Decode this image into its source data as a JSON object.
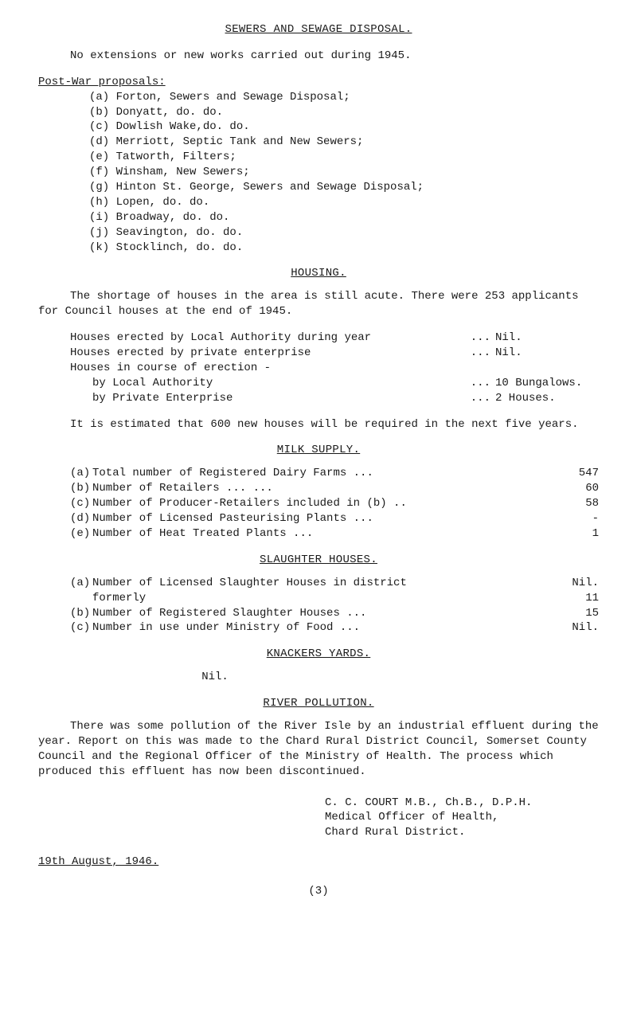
{
  "title": "SEWERS AND SEWAGE DISPOSAL.",
  "intro": "No extensions or new works carried out during 1945.",
  "postwar_head": "Post-War proposals:",
  "postwar": {
    "a": "(a) Forton, Sewers and Sewage Disposal;",
    "b": "(b) Donyatt,      do.          do.",
    "c": "(c) Dowlish Wake,do.          do.",
    "d": "(d) Merriott, Septic Tank and New Sewers;",
    "e": "(e) Tatworth, Filters;",
    "f": "(f) Winsham, New Sewers;",
    "g": "(g) Hinton St. George, Sewers and Sewage Disposal;",
    "h": "(h) Lopen,             do.           do.",
    "i": "(i) Broadway,          do.           do.",
    "j": "(j) Seavington,        do.           do.",
    "k": "(k) Stocklinch,        do.           do."
  },
  "housing": {
    "head": "HOUSING.",
    "para1": "The shortage of houses in the area is still acute.  There were 253 applicants for Council houses at the end of 1945.",
    "lines": {
      "l1_lbl": "Houses erected by Local Authority during year",
      "l1_dots": "...",
      "l1_val": "Nil.",
      "l2_lbl": "Houses erected by private enterprise",
      "l2_dots": "...",
      "l2_val": "Nil.",
      "l3": "Houses in course of erection -",
      "l4_lbl": "by Local Authority",
      "l4_dots": "...",
      "l4_val": "10 Bungalows.",
      "l5_lbl": "by Private Enterprise",
      "l5_dots": "...",
      "l5_val": "2 Houses."
    },
    "para2": "It is estimated that 600 new houses will be required in the next five years."
  },
  "milk": {
    "head": "MILK SUPPLY.",
    "rows": {
      "a_k": "(a)",
      "a_l": "Total number of Registered Dairy Farms       ...",
      "a_v": "547",
      "b_k": "(b)",
      "b_l": "Number of Retailers              ...          ...",
      "b_v": "60",
      "c_k": "(c)",
      "c_l": "Number of Producer-Retailers included in (b) ..",
      "c_v": "58",
      "d_k": "(d)",
      "d_l": "Number of Licensed Pasteurising Plants       ...",
      "d_v": "-",
      "e_k": "(e)",
      "e_l": "Number of Heat Treated Plants                ...",
      "e_v": "1"
    }
  },
  "slaughter": {
    "head": "SLAUGHTER HOUSES.",
    "rows": {
      "a_k": "(a)",
      "a_l": "Number of Licensed Slaughter Houses in district",
      "a_v": "Nil.",
      "f_l": "                                       formerly",
      "f_v": "11",
      "b_k": "(b)",
      "b_l": "Number of Registered Slaughter Houses        ...",
      "b_v": "15",
      "c_k": "(c)",
      "c_l": "Number in use under Ministry of Food         ...",
      "c_v": "Nil."
    }
  },
  "knackers": {
    "head": "KNACKERS YARDS.",
    "value": "Nil."
  },
  "river": {
    "head": "RIVER POLLUTION.",
    "para": "There was some pollution of the River Isle by an industrial effluent during the year.  Report on this was made to the Chard Rural District Council, Somerset County Council and the Regional Officer of the Ministry of Health.  The process which produced this effluent has now been discontinued."
  },
  "signature": {
    "l1": "C. C. COURT M.B., Ch.B., D.P.H.",
    "l2": "Medical Officer of Health,",
    "l3": "  Chard Rural District."
  },
  "date": "19th August, 1946.",
  "pageno": "(3)"
}
